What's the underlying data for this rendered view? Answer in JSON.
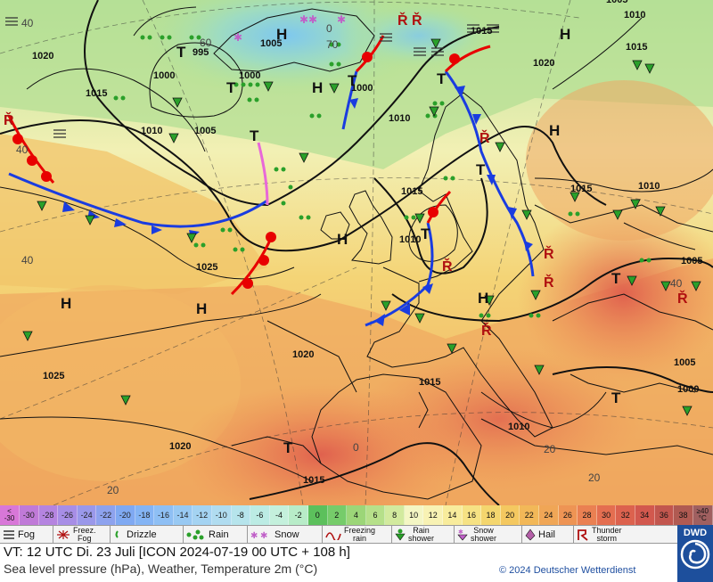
{
  "map": {
    "pressure_labels": [
      "1020",
      "1015",
      "1010",
      "1005",
      "1000",
      "995",
      "1005",
      "1000",
      "1015",
      "1010",
      "1015",
      "1020",
      "1015",
      "1010",
      "1025",
      "1020",
      "1025",
      "1020",
      "1015",
      "1015",
      "1010",
      "1005",
      "1000",
      "1005",
      "1010",
      "1015",
      "1010",
      "1000",
      "1005"
    ],
    "system_labels": [
      "H",
      "T",
      "H",
      "H",
      "T",
      "H",
      "H",
      "H",
      "H",
      "T",
      "T",
      "T",
      "T",
      "T",
      "T",
      "H",
      "T",
      "T"
    ],
    "temp_labels": [
      "40",
      "40",
      "40",
      "20",
      "0",
      "20",
      "0",
      "40",
      "70",
      "60",
      "20"
    ]
  },
  "scale": {
    "first": "<\n-30",
    "cells": [
      {
        "label": "-30",
        "color": "#c07ad8"
      },
      {
        "label": "-28",
        "color": "#b584e0"
      },
      {
        "label": "-26",
        "color": "#a78ee6"
      },
      {
        "label": "-24",
        "color": "#9a98ea"
      },
      {
        "label": "-22",
        "color": "#8da2ee"
      },
      {
        "label": "-20",
        "color": "#7fa9f2"
      },
      {
        "label": "-18",
        "color": "#84b4f4"
      },
      {
        "label": "-16",
        "color": "#8ebff4"
      },
      {
        "label": "-14",
        "color": "#98c9f3"
      },
      {
        "label": "-12",
        "color": "#a4d3f2"
      },
      {
        "label": "-10",
        "color": "#b0dcf0"
      },
      {
        "label": "-8",
        "color": "#b6e4ec"
      },
      {
        "label": "-6",
        "color": "#bcece4"
      },
      {
        "label": "-4",
        "color": "#c4f0dc"
      },
      {
        "label": "-2",
        "color": "#b8ecc8"
      },
      {
        "label": "0",
        "color": "#5cc05c"
      },
      {
        "label": "2",
        "color": "#76cc6a"
      },
      {
        "label": "4",
        "color": "#9cd678"
      },
      {
        "label": "6",
        "color": "#b6e08a"
      },
      {
        "label": "8",
        "color": "#d2ea9e"
      },
      {
        "label": "10",
        "color": "#f4f6c4"
      },
      {
        "label": "12",
        "color": "#f8f2b4"
      },
      {
        "label": "14",
        "color": "#f8ec9c"
      },
      {
        "label": "16",
        "color": "#f6e284"
      },
      {
        "label": "18",
        "color": "#f4d66e"
      },
      {
        "label": "20",
        "color": "#f4c860"
      },
      {
        "label": "22",
        "color": "#f2b858"
      },
      {
        "label": "24",
        "color": "#f0a656"
      },
      {
        "label": "26",
        "color": "#ee9454"
      },
      {
        "label": "28",
        "color": "#ea8052"
      },
      {
        "label": "30",
        "color": "#e46e50"
      },
      {
        "label": "32",
        "color": "#dc624e"
      },
      {
        "label": "34",
        "color": "#d2584e"
      },
      {
        "label": "36",
        "color": "#c2564e"
      },
      {
        "label": "38",
        "color": "#b05a52"
      }
    ],
    "last": "≥40\n°C"
  },
  "legend": [
    {
      "label": "Fog",
      "icon": "fog-icon"
    },
    {
      "label": "Freez.\nFog",
      "icon": "freezing-fog-icon"
    },
    {
      "label": "Drizzle",
      "icon": "drizzle-icon"
    },
    {
      "label": "Rain",
      "icon": "rain-icon"
    },
    {
      "label": "Snow",
      "icon": "snow-icon"
    },
    {
      "label": "Freezing\nrain",
      "icon": "freezing-rain-icon"
    },
    {
      "label": "Rain\nshower",
      "icon": "rain-shower-icon"
    },
    {
      "label": "Snow\nshower",
      "icon": "snow-shower-icon"
    },
    {
      "label": "Hail",
      "icon": "hail-icon"
    },
    {
      "label": "Thunder\nstorm",
      "icon": "thunderstorm-icon"
    }
  ],
  "info": {
    "valid_time": "VT: 12 UTC Di.  23 Juli [ICON 2024-07-19  00 UTC + 108 h]",
    "subtitle": "Sea level pressure (hPa), Weather, Temperature 2m (°C)",
    "copyright": "© 2024 Deutscher Wetterdienst",
    "logo_text": "DWD"
  }
}
